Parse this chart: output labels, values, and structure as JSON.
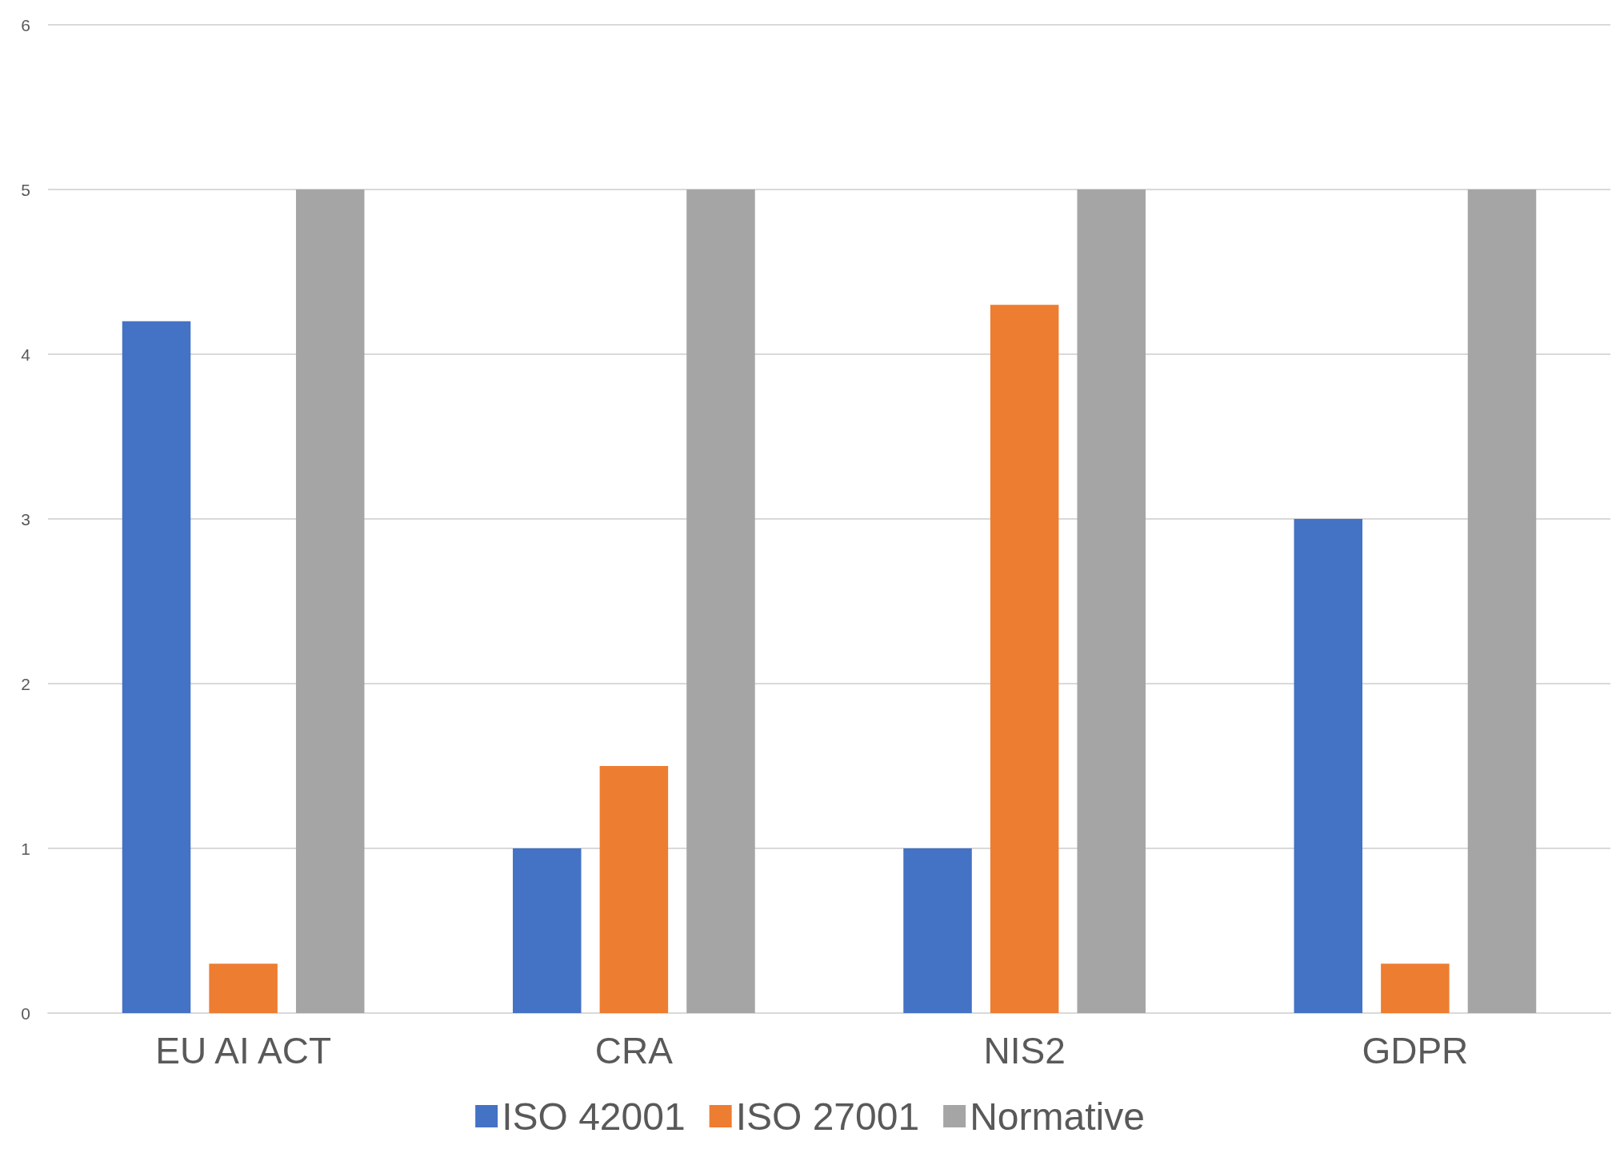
{
  "chart_data": {
    "type": "bar",
    "categories": [
      "EU AI ACT",
      "CRA",
      "NIS2",
      "GDPR"
    ],
    "series": [
      {
        "name": "ISO 42001",
        "color": "#4472c4",
        "values": [
          4.2,
          1,
          1,
          3
        ]
      },
      {
        "name": "ISO 27001",
        "color": "#ed7d31",
        "values": [
          0.3,
          1.5,
          4.3,
          0.3
        ]
      },
      {
        "name": "Normative",
        "color": "#a5a5a5",
        "values": [
          5,
          5,
          5,
          5
        ]
      }
    ],
    "ylim": [
      0,
      6
    ],
    "yticks": [
      0,
      1,
      2,
      3,
      4,
      5,
      6
    ],
    "grid": "y",
    "legend": "bottom"
  }
}
